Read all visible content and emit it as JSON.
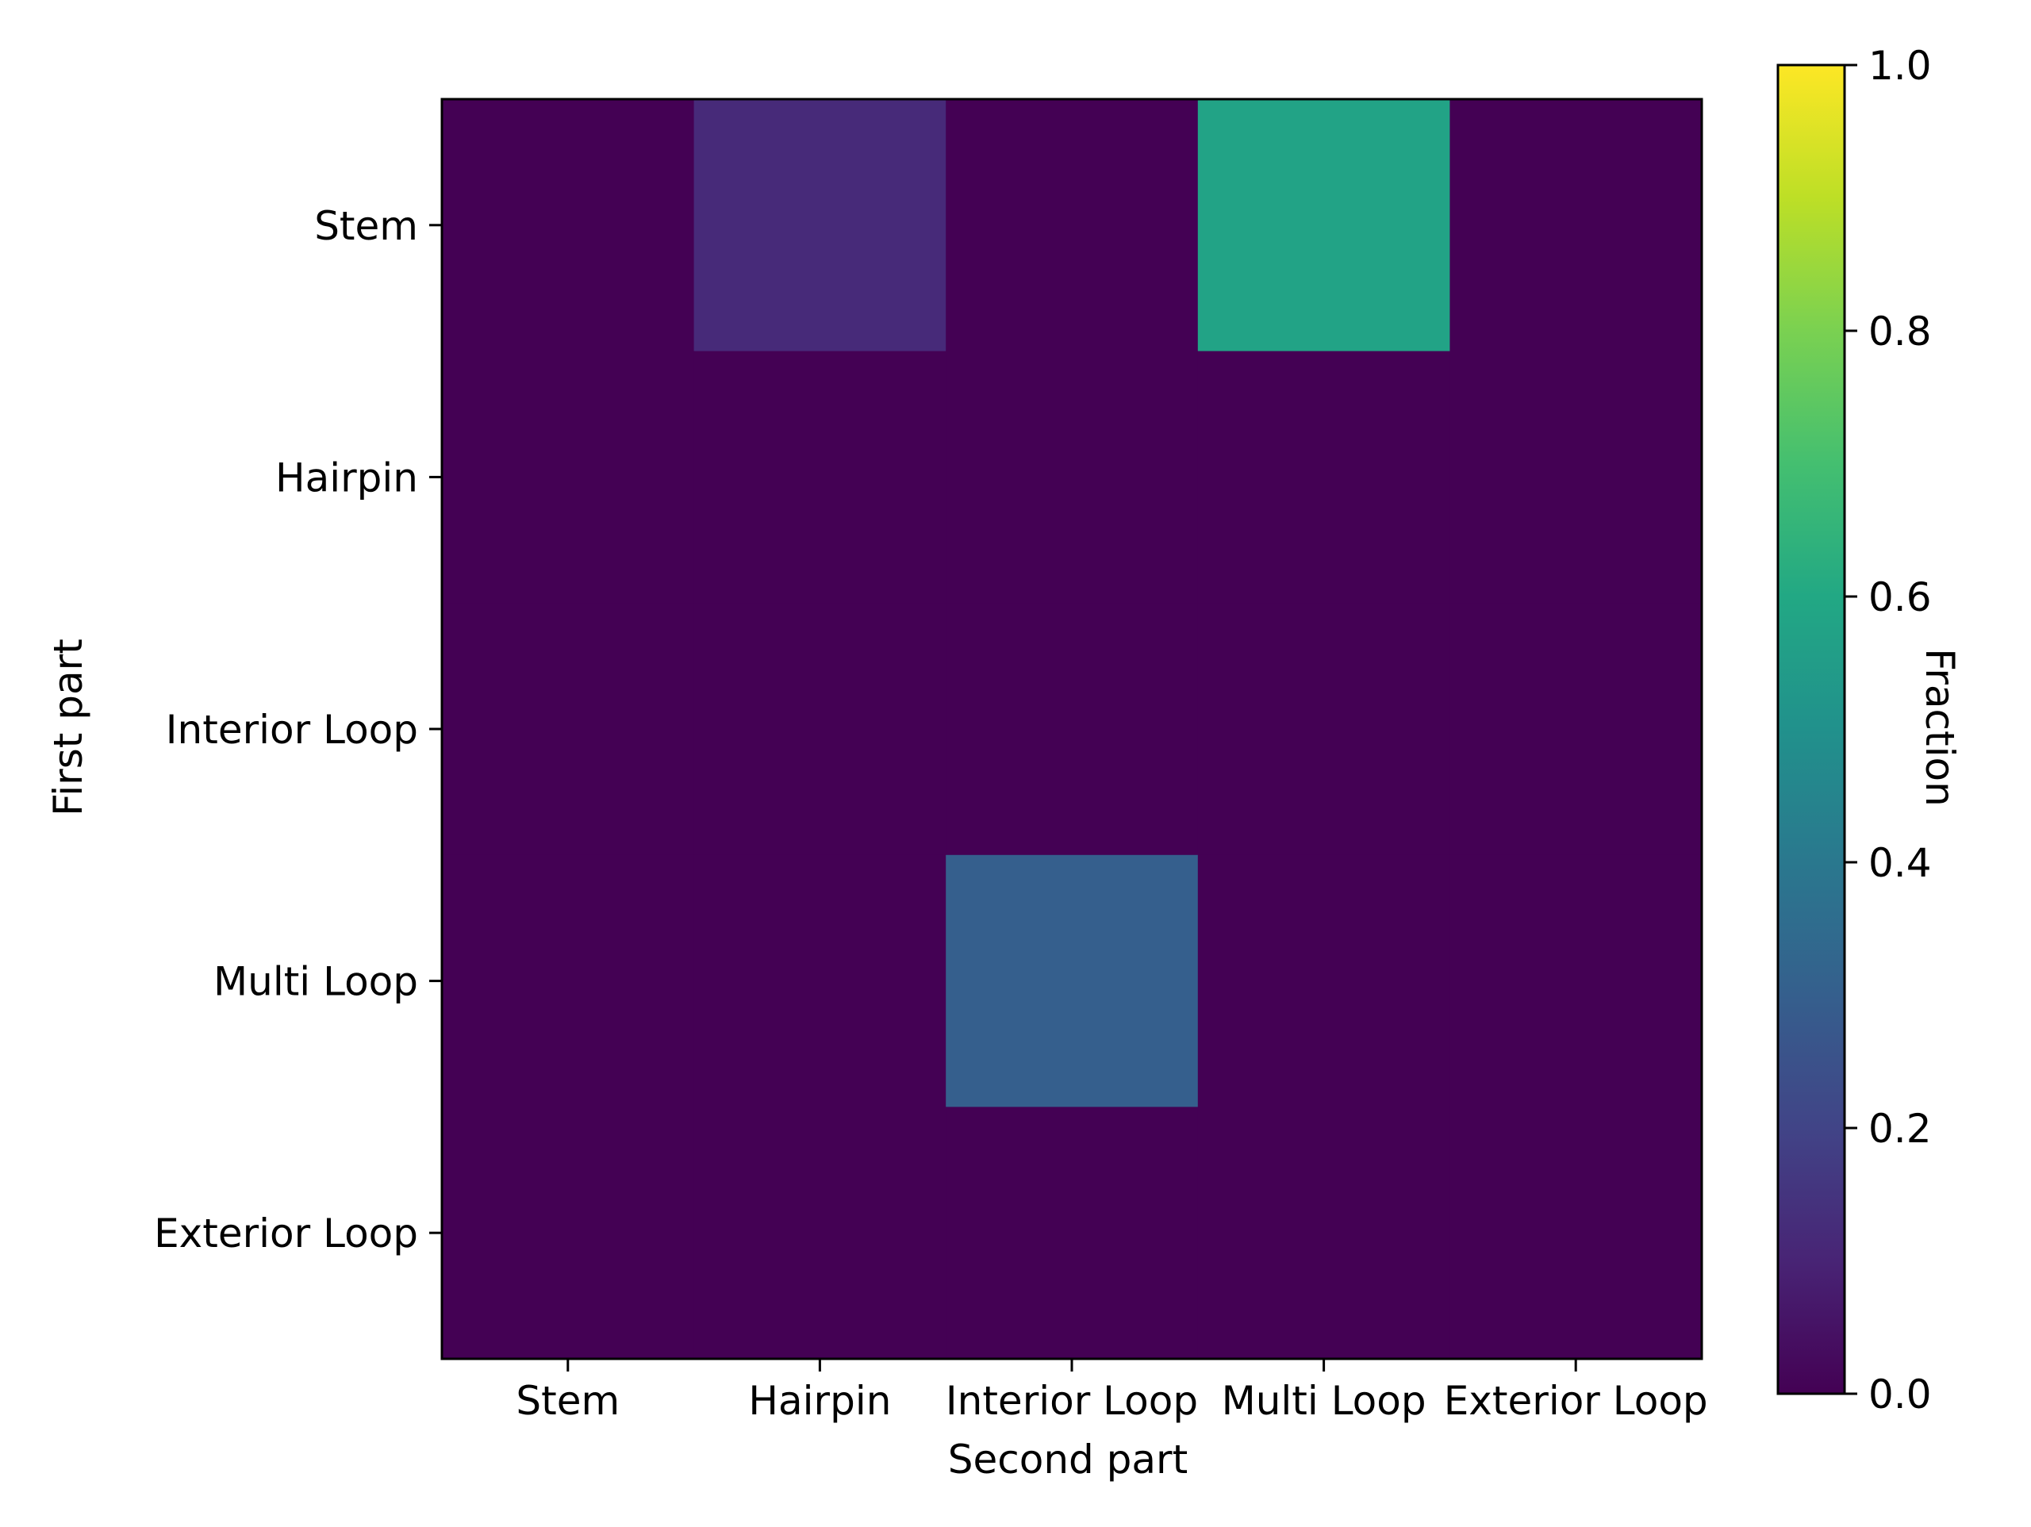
{
  "chart_data": {
    "type": "heatmap",
    "x_categories": [
      "Stem",
      "Hairpin",
      "Interior Loop",
      "Multi Loop",
      "Exterior Loop"
    ],
    "y_categories": [
      "Stem",
      "Hairpin",
      "Interior Loop",
      "Multi Loop",
      "Exterior Loop"
    ],
    "values": [
      [
        0.0,
        0.12,
        0.0,
        0.58,
        0.0
      ],
      [
        0.0,
        0.0,
        0.0,
        0.0,
        0.0
      ],
      [
        0.0,
        0.0,
        0.0,
        0.0,
        0.0
      ],
      [
        0.0,
        0.0,
        0.3,
        0.0,
        0.0
      ],
      [
        0.0,
        0.0,
        0.0,
        0.0,
        0.0
      ]
    ],
    "xlabel": "Second part",
    "ylabel": "First part",
    "colorbar": {
      "label": "Fraction",
      "range": [
        0.0,
        1.0
      ],
      "ticks": [
        0.0,
        0.2,
        0.4,
        0.6,
        0.8,
        1.0
      ],
      "tick_labels": [
        "0.0",
        "0.2",
        "0.4",
        "0.6",
        "0.8",
        "1.0"
      ],
      "colormap": "viridis"
    },
    "grid": false
  }
}
